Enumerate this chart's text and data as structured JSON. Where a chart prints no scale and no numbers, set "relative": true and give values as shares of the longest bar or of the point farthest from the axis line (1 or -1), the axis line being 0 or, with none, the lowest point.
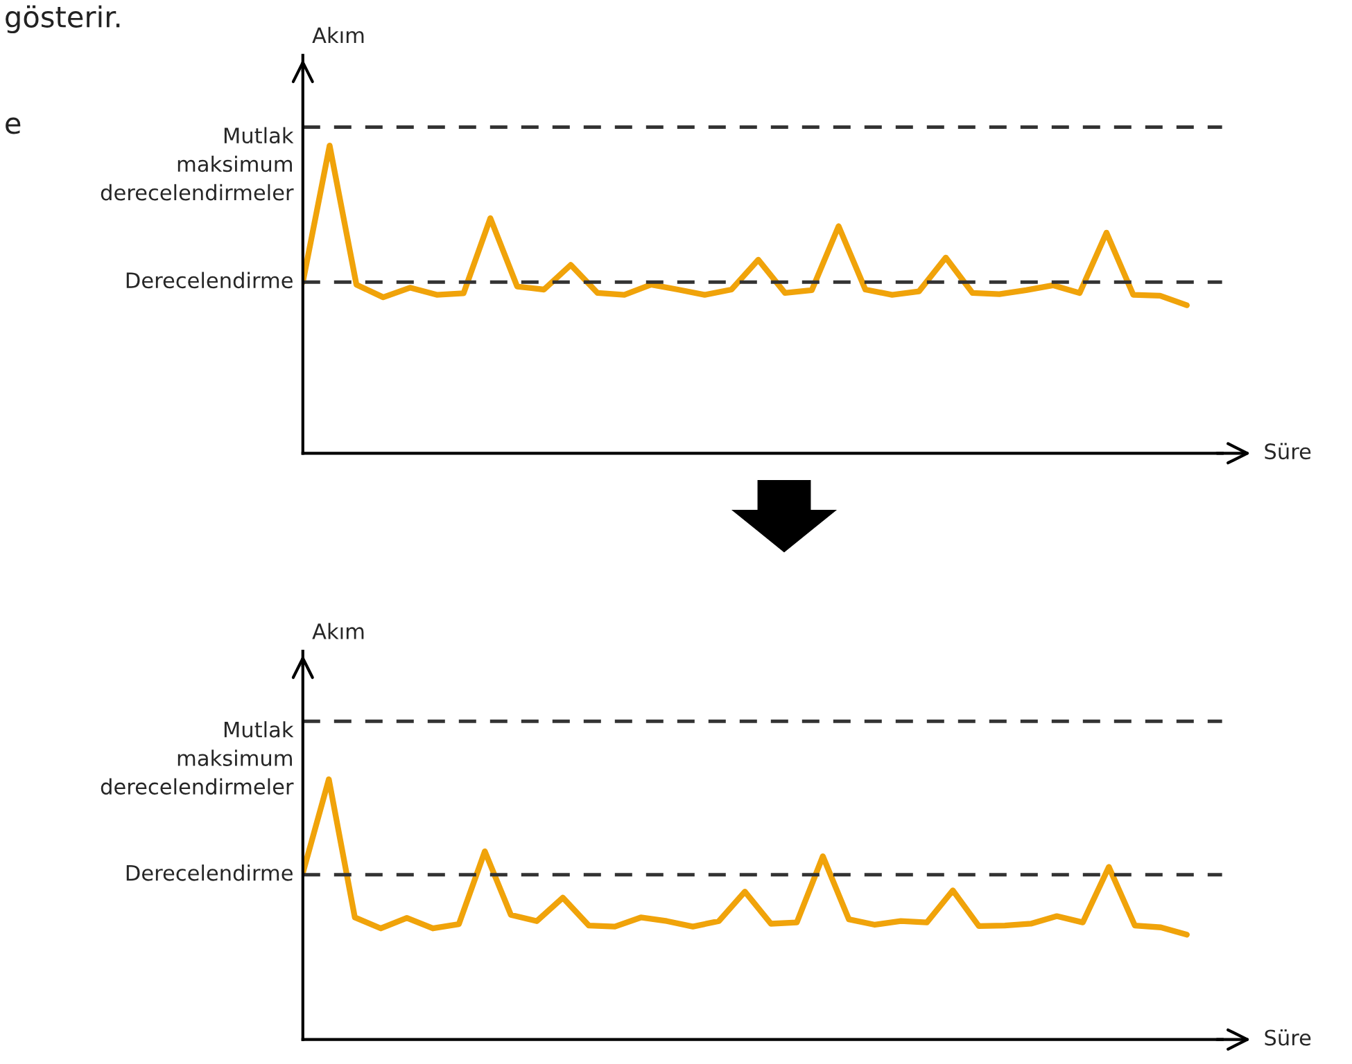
{
  "chart_data": [
    {
      "type": "line",
      "relative": true,
      "xlabel": "Süre",
      "ylabel": "Akım",
      "line_style": "solid",
      "marker": "none",
      "annotations": [
        "gösterir.",
        "e"
      ],
      "categories": [
        null,
        null,
        null,
        null,
        null,
        null,
        null,
        null,
        null,
        null,
        null,
        null,
        null,
        null,
        null,
        null,
        null,
        null,
        null,
        null,
        null,
        null,
        null,
        null,
        null,
        null,
        null,
        null,
        null,
        null,
        null,
        null,
        null,
        null
      ],
      "series": [
        {
          "color": "#f0a30a",
          "values": [
            0.556,
            1.0,
            0.548,
            0.507,
            0.538,
            0.515,
            0.52,
            0.764,
            0.542,
            0.532,
            0.612,
            0.521,
            0.515,
            0.548,
            0.532,
            0.515,
            0.532,
            0.629,
            0.521,
            0.53,
            0.738,
            0.532,
            0.515,
            0.526,
            0.636,
            0.521,
            0.517,
            0.53,
            0.546,
            0.521,
            0.717,
            0.515,
            0.512,
            0.481
          ]
        }
      ],
      "ref_lines": [
        {
          "axis": "y",
          "value": 1.06,
          "label": "Mutlak\nmaksimum\nderecelendirmeler",
          "color": "#333333",
          "line_style": "dashed"
        },
        {
          "axis": "y",
          "value": 0.556,
          "label": "Derecelendirme",
          "color": "#333333",
          "line_style": "dashed"
        }
      ]
    },
    {
      "type": "line",
      "relative": true,
      "xlabel": "Süre",
      "ylabel": "Akım",
      "line_style": "solid",
      "marker": "none",
      "categories": [
        null,
        null,
        null,
        null,
        null,
        null,
        null,
        null,
        null,
        null,
        null,
        null,
        null,
        null,
        null,
        null,
        null,
        null,
        null,
        null,
        null,
        null,
        null,
        null,
        null,
        null,
        null,
        null,
        null,
        null,
        null,
        null,
        null,
        null,
        null
      ],
      "series": [
        {
          "color": "#f0a30a",
          "values": [
            0.64,
            1.0,
            0.469,
            0.427,
            0.467,
            0.427,
            0.443,
            0.723,
            0.479,
            0.455,
            0.545,
            0.438,
            0.434,
            0.469,
            0.455,
            0.434,
            0.455,
            0.568,
            0.445,
            0.45,
            0.704,
            0.462,
            0.441,
            0.455,
            0.45,
            0.573,
            0.436,
            0.438,
            0.445,
            0.474,
            0.45,
            0.663,
            0.438,
            0.431,
            0.403
          ]
        }
      ],
      "ref_lines": [
        {
          "axis": "y",
          "value": 1.223,
          "label": "Mutlak\nmaksimum\nderecelendirmeler",
          "color": "#333333",
          "line_style": "dashed"
        },
        {
          "axis": "y",
          "value": 0.633,
          "label": "Derecelendirme",
          "color": "#333333",
          "line_style": "dashed"
        }
      ]
    }
  ]
}
